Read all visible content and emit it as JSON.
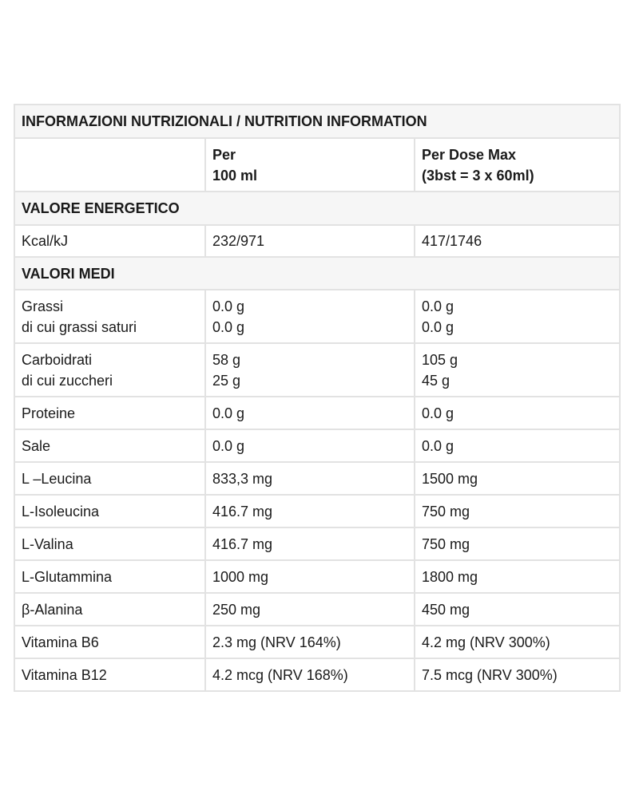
{
  "title": "INFORMAZIONI NUTRIZIONALI / NUTRITION INFORMATION",
  "header": {
    "col2": [
      "Per",
      "100 ml"
    ],
    "col3": [
      "Per Dose Max",
      "(3bst = 3 x 60ml)"
    ]
  },
  "section_energy": "VALORE ENERGETICO",
  "energy": {
    "label": "Kcal/kJ",
    "per100": "232/971",
    "dose": "417/1746"
  },
  "section_avg": "VALORI MEDI",
  "rows": [
    {
      "label": [
        "Grassi",
        "di cui grassi saturi"
      ],
      "per100": [
        "0.0 g",
        "0.0 g"
      ],
      "dose": [
        "0.0 g",
        "0.0 g"
      ]
    },
    {
      "label": [
        "Carboidrati",
        "di cui zuccheri"
      ],
      "per100": [
        "58 g",
        "25 g"
      ],
      "dose": [
        "105 g",
        "45 g"
      ]
    },
    {
      "label": [
        "Proteine"
      ],
      "per100": [
        "0.0 g"
      ],
      "dose": [
        "0.0 g"
      ]
    },
    {
      "label": [
        "Sale"
      ],
      "per100": [
        "0.0 g"
      ],
      "dose": [
        "0.0 g"
      ]
    },
    {
      "label": [
        "L –Leucina"
      ],
      "per100": [
        "833,3 mg"
      ],
      "dose": [
        "1500 mg"
      ]
    },
    {
      "label": [
        "L-Isoleucina"
      ],
      "per100": [
        "416.7 mg"
      ],
      "dose": [
        "750 mg"
      ]
    },
    {
      "label": [
        "L-Valina"
      ],
      "per100": [
        "416.7 mg"
      ],
      "dose": [
        "750 mg"
      ]
    },
    {
      "label": [
        "L-Glutammina"
      ],
      "per100": [
        "1000 mg"
      ],
      "dose": [
        "1800 mg"
      ]
    },
    {
      "label": [
        "β-Alanina"
      ],
      "per100": [
        "250 mg"
      ],
      "dose": [
        "450 mg"
      ]
    },
    {
      "label": [
        "Vitamina B6"
      ],
      "per100": [
        "2.3 mg (NRV 164%)"
      ],
      "dose": [
        "4.2 mg (NRV 300%)"
      ]
    },
    {
      "label": [
        "Vitamina B12"
      ],
      "per100": [
        "4.2 mcg (NRV 168%)"
      ],
      "dose": [
        "7.5 mcg (NRV 300%)"
      ]
    }
  ]
}
